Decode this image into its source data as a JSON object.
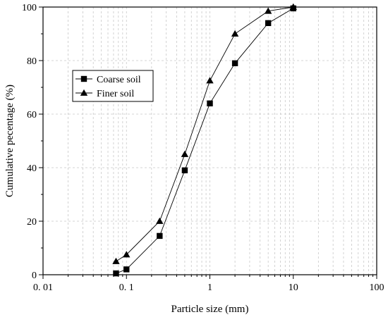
{
  "chart_data": {
    "type": "line",
    "title": "",
    "xlabel": "Particle size (mm)",
    "ylabel": "Cumulative pecentage (%)",
    "x_scale": "log",
    "xlim": [
      0.01,
      100
    ],
    "ylim": [
      0,
      100
    ],
    "x_ticks": [
      0.01,
      0.1,
      1,
      10,
      100
    ],
    "x_tick_labels": [
      "0. 01",
      "0. 1",
      "1",
      "10",
      "100"
    ],
    "y_ticks": [
      0,
      20,
      40,
      60,
      80,
      100
    ],
    "y_tick_labels": [
      "0",
      "20",
      "40",
      "60",
      "80",
      "100"
    ],
    "grid": true,
    "legend_position": "upper-left",
    "series": [
      {
        "name": "Coarse soil",
        "marker": "square",
        "color": "#000000",
        "x": [
          0.075,
          0.1,
          0.25,
          0.5,
          1,
          2,
          5,
          10
        ],
        "y": [
          0.5,
          2,
          14.5,
          39,
          64,
          79,
          94,
          99.5
        ]
      },
      {
        "name": "Finer soil",
        "marker": "triangle",
        "color": "#000000",
        "x": [
          0.075,
          0.1,
          0.25,
          0.5,
          1,
          2,
          5,
          10
        ],
        "y": [
          5,
          7.5,
          20,
          45,
          72.5,
          90,
          98.5,
          100
        ]
      }
    ]
  }
}
